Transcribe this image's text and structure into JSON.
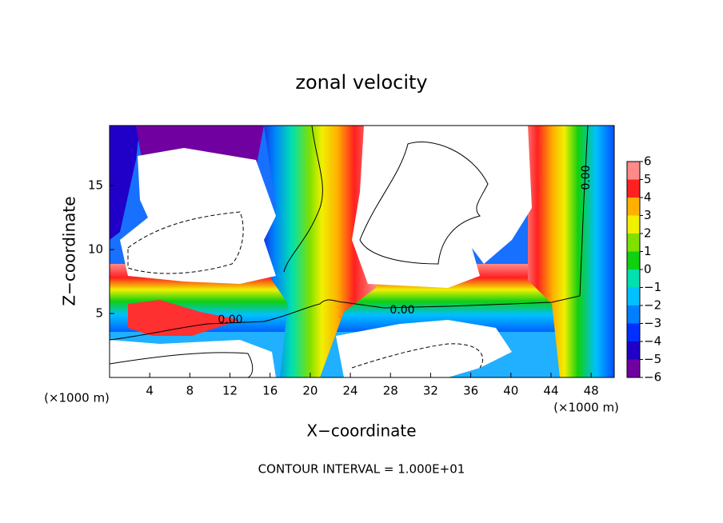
{
  "chart_data": {
    "type": "contour",
    "title": "zonal velocity",
    "x_label": "X−coordinate",
    "y_label": "Z−coordinate",
    "x_unit": "(×1000 m)",
    "y_unit": "(×1000 m)",
    "note": "CONTOUR INTERVAL = 1.000E+01",
    "contour_labels": [
      "0.00",
      "0.00",
      "0.00"
    ],
    "xlim": [
      0,
      50.3
    ],
    "ylim": [
      0,
      19.7
    ],
    "xticks": [
      4,
      8,
      12,
      16,
      20,
      24,
      28,
      32,
      36,
      40,
      44,
      48
    ],
    "yticks": [
      5,
      10,
      15
    ],
    "clim": [
      -6,
      6
    ],
    "cticks": [
      {
        "value": -6,
        "label": "−6"
      },
      {
        "value": -5,
        "label": "−5"
      },
      {
        "value": -4,
        "label": "−4"
      },
      {
        "value": -3,
        "label": "−3"
      },
      {
        "value": -2,
        "label": "−2"
      },
      {
        "value": -1,
        "label": "−1"
      },
      0,
      1,
      2,
      3,
      4,
      5,
      6
    ],
    "colors": [
      "#7000a0",
      "#2000c8",
      "#0030ff",
      "#0080ff",
      "#00c0ff",
      "#00e0b0",
      "#10d010",
      "#80e000",
      "#f0f000",
      "#ffb000",
      "#ff2020",
      "#ff8a8a"
    ]
  }
}
